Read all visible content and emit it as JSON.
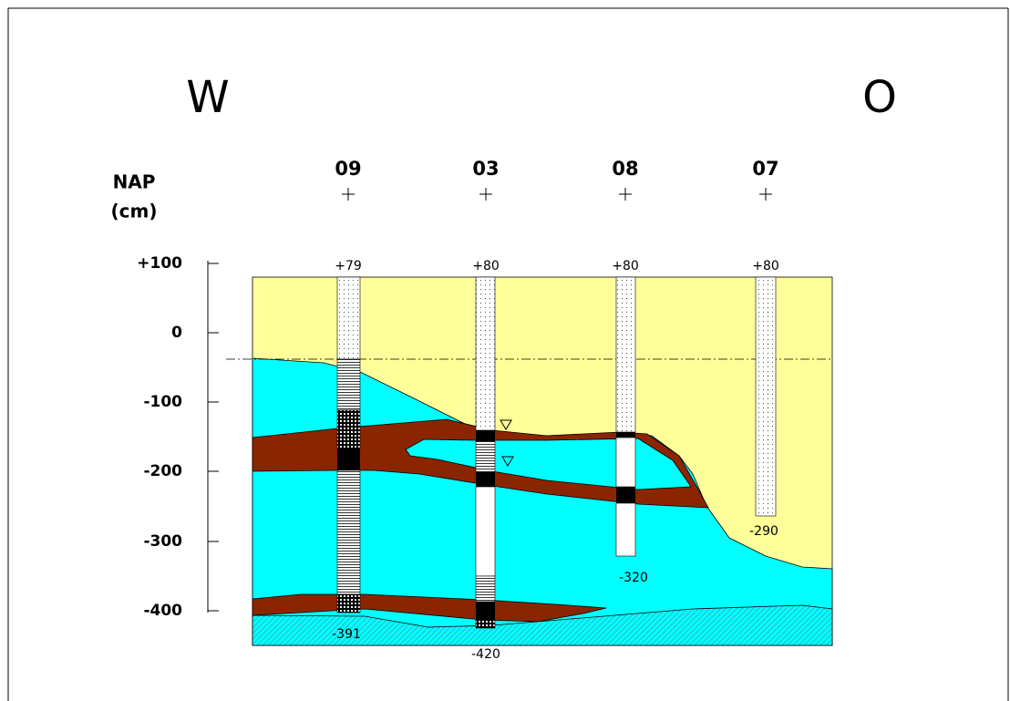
{
  "header": {
    "west": "W",
    "east": "O",
    "axis_title": "NAP",
    "axis_unit": "(cm)"
  },
  "axis": {
    "ticks": [
      "+100",
      "0",
      "-100",
      "-200",
      "-300",
      "-400"
    ]
  },
  "boreholes": [
    {
      "name": "09",
      "top": "+79",
      "bottom": "-391"
    },
    {
      "name": "03",
      "top": "+80",
      "bottom": "-420"
    },
    {
      "name": "08",
      "top": "+80",
      "bottom": "-320"
    },
    {
      "name": "07",
      "top": "+80",
      "bottom": "-290"
    }
  ]
}
